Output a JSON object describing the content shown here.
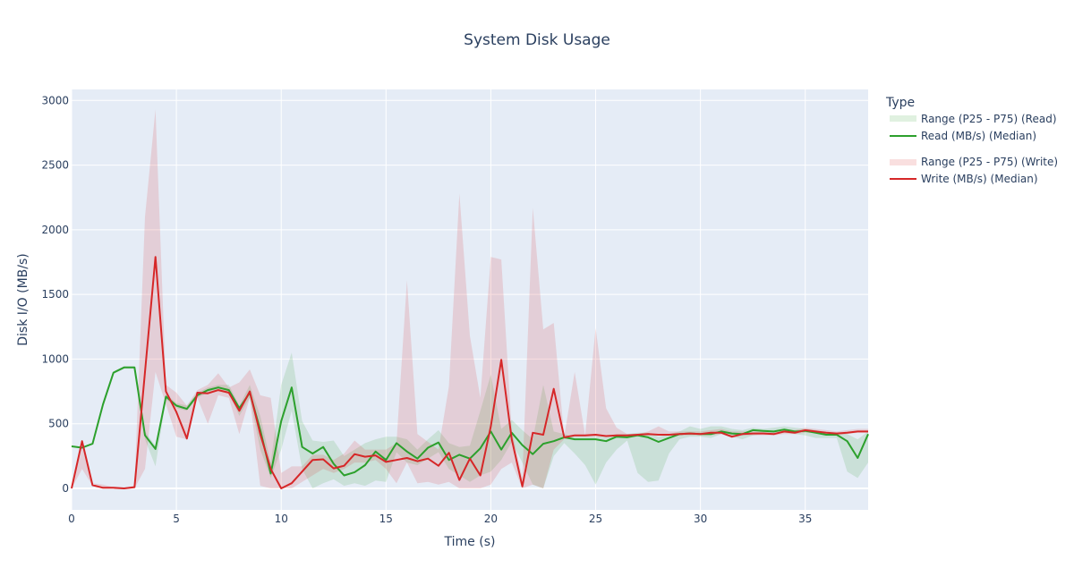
{
  "chart_data": {
    "type": "line",
    "title": "System Disk Usage",
    "xlabel": "Time (s)",
    "ylabel": "Disk I/O (MB/s)",
    "xlim": [
      0,
      38
    ],
    "ylim": [
      -166,
      3085
    ],
    "xticks": [
      0,
      5,
      10,
      15,
      20,
      25,
      30,
      35
    ],
    "yticks": [
      0,
      500,
      1000,
      1500,
      2000,
      2500,
      3000
    ],
    "grid": true,
    "legend": {
      "title": "Type",
      "placement": "right"
    },
    "x_start": 0,
    "x_step": 0.5,
    "series": [
      {
        "name": "Read (MB/s) (Median)",
        "band_name": "Range (P25 - P75) (Read)",
        "color": "#2ca02c",
        "band_color": "rgba(44,160,44,0.15)",
        "median": [
          325,
          315,
          345,
          650,
          895,
          935,
          935,
          410,
          305,
          710,
          640,
          615,
          720,
          760,
          780,
          760,
          620,
          740,
          450,
          115,
          520,
          780,
          320,
          270,
          320,
          190,
          100,
          125,
          180,
          285,
          220,
          350,
          285,
          230,
          315,
          355,
          220,
          260,
          230,
          310,
          440,
          300,
          430,
          335,
          265,
          345,
          365,
          395,
          380,
          380,
          380,
          365,
          400,
          395,
          410,
          395,
          360,
          390,
          420,
          425,
          420,
          420,
          440,
          425,
          420,
          450,
          445,
          440,
          455,
          440,
          445,
          430,
          415,
          415,
          365,
          235,
          420
        ],
        "p25": [
          320,
          310,
          340,
          640,
          885,
          925,
          925,
          380,
          170,
          690,
          620,
          600,
          700,
          740,
          760,
          740,
          560,
          700,
          300,
          80,
          300,
          600,
          150,
          0,
          40,
          70,
          20,
          40,
          20,
          60,
          50,
          280,
          200,
          180,
          230,
          280,
          150,
          100,
          50,
          100,
          130,
          220,
          360,
          200,
          30,
          0,
          250,
          350,
          270,
          180,
          30,
          200,
          300,
          370,
          120,
          50,
          60,
          270,
          380,
          400,
          400,
          390,
          420,
          400,
          380,
          410,
          420,
          420,
          430,
          420,
          410,
          390,
          390,
          390,
          130,
          80,
          200
        ],
        "p75": [
          335,
          320,
          350,
          660,
          905,
          945,
          945,
          440,
          330,
          730,
          660,
          640,
          740,
          780,
          800,
          800,
          640,
          800,
          560,
          200,
          800,
          1050,
          520,
          370,
          360,
          370,
          250,
          300,
          350,
          380,
          400,
          400,
          380,
          300,
          380,
          450,
          350,
          320,
          330,
          600,
          880,
          460,
          530,
          450,
          380,
          800,
          440,
          420,
          400,
          400,
          400,
          400,
          420,
          420,
          430,
          430,
          400,
          420,
          440,
          480,
          460,
          480,
          480,
          460,
          450,
          470,
          460,
          470,
          480,
          470,
          460,
          450,
          430,
          430,
          420,
          380,
          440
        ]
      },
      {
        "name": "Write (MB/s) (Median)",
        "band_name": "Range (P25 - P75) (Write)",
        "color": "#d62728",
        "band_color": "rgba(214,39,40,0.15)",
        "median": [
          0,
          365,
          25,
          5,
          5,
          0,
          10,
          900,
          1790,
          750,
          590,
          385,
          740,
          735,
          760,
          740,
          600,
          750,
          420,
          150,
          0,
          40,
          130,
          220,
          225,
          155,
          175,
          265,
          245,
          255,
          205,
          220,
          235,
          210,
          230,
          175,
          275,
          65,
          230,
          100,
          480,
          995,
          380,
          15,
          430,
          415,
          770,
          395,
          410,
          410,
          415,
          405,
          410,
          410,
          415,
          420,
          415,
          415,
          420,
          425,
          420,
          430,
          430,
          400,
          420,
          425,
          425,
          420,
          440,
          430,
          450,
          440,
          430,
          425,
          430,
          440,
          440
        ],
        "p25": [
          0,
          150,
          20,
          0,
          0,
          -5,
          0,
          150,
          900,
          650,
          400,
          380,
          700,
          500,
          720,
          700,
          420,
          700,
          20,
          0,
          0,
          0,
          50,
          100,
          150,
          120,
          150,
          200,
          200,
          220,
          150,
          40,
          200,
          40,
          50,
          30,
          50,
          0,
          0,
          0,
          30,
          150,
          200,
          0,
          30,
          0,
          300,
          380,
          400,
          400,
          400,
          400,
          400,
          400,
          400,
          410,
          410,
          410,
          410,
          410,
          410,
          410,
          420,
          390,
          410,
          410,
          410,
          410,
          420,
          420,
          430,
          430,
          420,
          410,
          420,
          430,
          430
        ],
        "p75": [
          20,
          370,
          40,
          30,
          10,
          5,
          20,
          2100,
          2930,
          800,
          740,
          640,
          760,
          800,
          890,
          780,
          820,
          920,
          720,
          700,
          120,
          170,
          170,
          260,
          260,
          220,
          270,
          370,
          300,
          300,
          300,
          350,
          1610,
          420,
          360,
          300,
          790,
          2280,
          1180,
          700,
          1790,
          1770,
          450,
          80,
          2170,
          1230,
          1280,
          400,
          900,
          410,
          1240,
          620,
          470,
          420,
          420,
          440,
          480,
          440,
          440,
          440,
          440,
          450,
          460,
          440,
          440,
          440,
          440,
          440,
          460,
          450,
          470,
          460,
          450,
          440,
          450,
          460,
          460
        ]
      }
    ]
  }
}
